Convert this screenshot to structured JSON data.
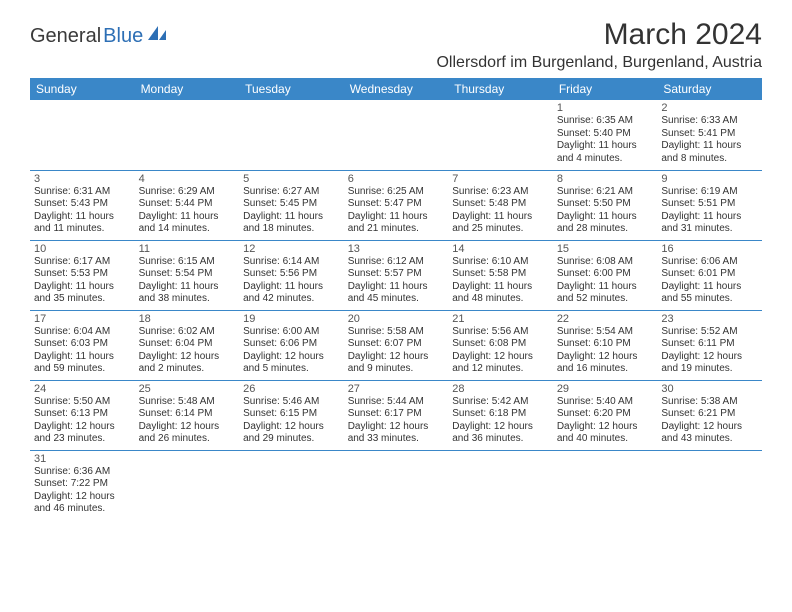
{
  "logo": {
    "part1": "General",
    "part2": "Blue"
  },
  "title": "March 2024",
  "location": "Ollersdorf im Burgenland, Burgenland, Austria",
  "colors": {
    "header_bg": "#3a87c8",
    "header_text": "#ffffff",
    "border": "#3a87c8",
    "title_color": "#333333",
    "body_text": "#333333",
    "logo_gray": "#3a3a3a",
    "logo_blue": "#2d6fb5"
  },
  "weekdays": [
    "Sunday",
    "Monday",
    "Tuesday",
    "Wednesday",
    "Thursday",
    "Friday",
    "Saturday"
  ],
  "weeks": [
    [
      null,
      null,
      null,
      null,
      null,
      {
        "n": "1",
        "sr": "Sunrise: 6:35 AM",
        "ss": "Sunset: 5:40 PM",
        "d1": "Daylight: 11 hours",
        "d2": "and 4 minutes."
      },
      {
        "n": "2",
        "sr": "Sunrise: 6:33 AM",
        "ss": "Sunset: 5:41 PM",
        "d1": "Daylight: 11 hours",
        "d2": "and 8 minutes."
      }
    ],
    [
      {
        "n": "3",
        "sr": "Sunrise: 6:31 AM",
        "ss": "Sunset: 5:43 PM",
        "d1": "Daylight: 11 hours",
        "d2": "and 11 minutes."
      },
      {
        "n": "4",
        "sr": "Sunrise: 6:29 AM",
        "ss": "Sunset: 5:44 PM",
        "d1": "Daylight: 11 hours",
        "d2": "and 14 minutes."
      },
      {
        "n": "5",
        "sr": "Sunrise: 6:27 AM",
        "ss": "Sunset: 5:45 PM",
        "d1": "Daylight: 11 hours",
        "d2": "and 18 minutes."
      },
      {
        "n": "6",
        "sr": "Sunrise: 6:25 AM",
        "ss": "Sunset: 5:47 PM",
        "d1": "Daylight: 11 hours",
        "d2": "and 21 minutes."
      },
      {
        "n": "7",
        "sr": "Sunrise: 6:23 AM",
        "ss": "Sunset: 5:48 PM",
        "d1": "Daylight: 11 hours",
        "d2": "and 25 minutes."
      },
      {
        "n": "8",
        "sr": "Sunrise: 6:21 AM",
        "ss": "Sunset: 5:50 PM",
        "d1": "Daylight: 11 hours",
        "d2": "and 28 minutes."
      },
      {
        "n": "9",
        "sr": "Sunrise: 6:19 AM",
        "ss": "Sunset: 5:51 PM",
        "d1": "Daylight: 11 hours",
        "d2": "and 31 minutes."
      }
    ],
    [
      {
        "n": "10",
        "sr": "Sunrise: 6:17 AM",
        "ss": "Sunset: 5:53 PM",
        "d1": "Daylight: 11 hours",
        "d2": "and 35 minutes."
      },
      {
        "n": "11",
        "sr": "Sunrise: 6:15 AM",
        "ss": "Sunset: 5:54 PM",
        "d1": "Daylight: 11 hours",
        "d2": "and 38 minutes."
      },
      {
        "n": "12",
        "sr": "Sunrise: 6:14 AM",
        "ss": "Sunset: 5:56 PM",
        "d1": "Daylight: 11 hours",
        "d2": "and 42 minutes."
      },
      {
        "n": "13",
        "sr": "Sunrise: 6:12 AM",
        "ss": "Sunset: 5:57 PM",
        "d1": "Daylight: 11 hours",
        "d2": "and 45 minutes."
      },
      {
        "n": "14",
        "sr": "Sunrise: 6:10 AM",
        "ss": "Sunset: 5:58 PM",
        "d1": "Daylight: 11 hours",
        "d2": "and 48 minutes."
      },
      {
        "n": "15",
        "sr": "Sunrise: 6:08 AM",
        "ss": "Sunset: 6:00 PM",
        "d1": "Daylight: 11 hours",
        "d2": "and 52 minutes."
      },
      {
        "n": "16",
        "sr": "Sunrise: 6:06 AM",
        "ss": "Sunset: 6:01 PM",
        "d1": "Daylight: 11 hours",
        "d2": "and 55 minutes."
      }
    ],
    [
      {
        "n": "17",
        "sr": "Sunrise: 6:04 AM",
        "ss": "Sunset: 6:03 PM",
        "d1": "Daylight: 11 hours",
        "d2": "and 59 minutes."
      },
      {
        "n": "18",
        "sr": "Sunrise: 6:02 AM",
        "ss": "Sunset: 6:04 PM",
        "d1": "Daylight: 12 hours",
        "d2": "and 2 minutes."
      },
      {
        "n": "19",
        "sr": "Sunrise: 6:00 AM",
        "ss": "Sunset: 6:06 PM",
        "d1": "Daylight: 12 hours",
        "d2": "and 5 minutes."
      },
      {
        "n": "20",
        "sr": "Sunrise: 5:58 AM",
        "ss": "Sunset: 6:07 PM",
        "d1": "Daylight: 12 hours",
        "d2": "and 9 minutes."
      },
      {
        "n": "21",
        "sr": "Sunrise: 5:56 AM",
        "ss": "Sunset: 6:08 PM",
        "d1": "Daylight: 12 hours",
        "d2": "and 12 minutes."
      },
      {
        "n": "22",
        "sr": "Sunrise: 5:54 AM",
        "ss": "Sunset: 6:10 PM",
        "d1": "Daylight: 12 hours",
        "d2": "and 16 minutes."
      },
      {
        "n": "23",
        "sr": "Sunrise: 5:52 AM",
        "ss": "Sunset: 6:11 PM",
        "d1": "Daylight: 12 hours",
        "d2": "and 19 minutes."
      }
    ],
    [
      {
        "n": "24",
        "sr": "Sunrise: 5:50 AM",
        "ss": "Sunset: 6:13 PM",
        "d1": "Daylight: 12 hours",
        "d2": "and 23 minutes."
      },
      {
        "n": "25",
        "sr": "Sunrise: 5:48 AM",
        "ss": "Sunset: 6:14 PM",
        "d1": "Daylight: 12 hours",
        "d2": "and 26 minutes."
      },
      {
        "n": "26",
        "sr": "Sunrise: 5:46 AM",
        "ss": "Sunset: 6:15 PM",
        "d1": "Daylight: 12 hours",
        "d2": "and 29 minutes."
      },
      {
        "n": "27",
        "sr": "Sunrise: 5:44 AM",
        "ss": "Sunset: 6:17 PM",
        "d1": "Daylight: 12 hours",
        "d2": "and 33 minutes."
      },
      {
        "n": "28",
        "sr": "Sunrise: 5:42 AM",
        "ss": "Sunset: 6:18 PM",
        "d1": "Daylight: 12 hours",
        "d2": "and 36 minutes."
      },
      {
        "n": "29",
        "sr": "Sunrise: 5:40 AM",
        "ss": "Sunset: 6:20 PM",
        "d1": "Daylight: 12 hours",
        "d2": "and 40 minutes."
      },
      {
        "n": "30",
        "sr": "Sunrise: 5:38 AM",
        "ss": "Sunset: 6:21 PM",
        "d1": "Daylight: 12 hours",
        "d2": "and 43 minutes."
      }
    ],
    [
      {
        "n": "31",
        "sr": "Sunrise: 6:36 AM",
        "ss": "Sunset: 7:22 PM",
        "d1": "Daylight: 12 hours",
        "d2": "and 46 minutes."
      },
      null,
      null,
      null,
      null,
      null,
      null
    ]
  ]
}
